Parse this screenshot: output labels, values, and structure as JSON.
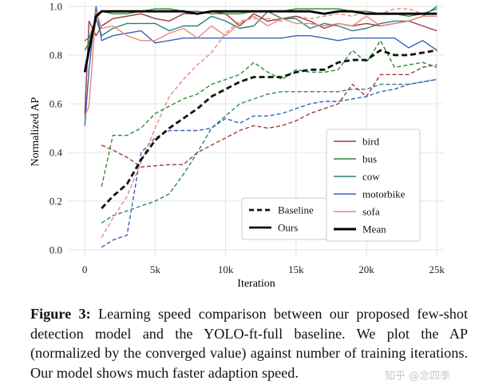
{
  "chart_data": {
    "type": "line",
    "xlabel": "Iteration",
    "ylabel": "Normalized AP",
    "xlim": [
      -1200,
      25500
    ],
    "ylim": [
      -0.03,
      1.02
    ],
    "xticks": [
      0,
      5000,
      10000,
      15000,
      20000,
      25000
    ],
    "xtick_labels": [
      "0",
      "5k",
      "10k",
      "15k",
      "20k",
      "25k"
    ],
    "yticks": [
      0.0,
      0.2,
      0.4,
      0.6,
      0.8,
      1.0
    ],
    "ytick_labels": [
      "0.0",
      "0.2",
      "0.4",
      "0.6",
      "0.8",
      "1.0"
    ],
    "grid": true,
    "legend_placement": "bottom-right",
    "series": [
      {
        "name": "bird",
        "color": "#9b3a3f",
        "style": "dashed",
        "width": 1.4,
        "x": [
          1200,
          2000,
          3000,
          4000,
          5000,
          6000,
          7000,
          8000,
          9000,
          10000,
          11000,
          12000,
          13000,
          14000,
          15000,
          16000,
          17000,
          18000,
          19000,
          20000,
          21000,
          22000,
          23000,
          24000,
          25000
        ],
        "y": [
          0.43,
          0.41,
          0.38,
          0.34,
          0.345,
          0.35,
          0.35,
          0.4,
          0.43,
          0.46,
          0.49,
          0.51,
          0.5,
          0.51,
          0.53,
          0.56,
          0.58,
          0.6,
          0.68,
          0.63,
          0.72,
          0.72,
          0.72,
          0.75,
          0.76
        ]
      },
      {
        "name": "bus",
        "color": "#2e8b2e",
        "style": "dashed",
        "width": 1.4,
        "x": [
          1200,
          2000,
          3000,
          4000,
          5000,
          6000,
          7000,
          8000,
          9000,
          10000,
          11000,
          12000,
          13000,
          14000,
          15000,
          16000,
          17000,
          18000,
          19000,
          20000,
          21000,
          22000,
          23000,
          24000,
          25000
        ],
        "y": [
          0.26,
          0.47,
          0.47,
          0.5,
          0.56,
          0.59,
          0.62,
          0.64,
          0.68,
          0.7,
          0.72,
          0.77,
          0.73,
          0.7,
          0.74,
          0.73,
          0.73,
          0.74,
          0.82,
          0.77,
          0.86,
          0.75,
          0.76,
          0.77,
          0.75
        ]
      },
      {
        "name": "cow",
        "color": "#2a7f7a",
        "style": "dashed",
        "width": 1.4,
        "x": [
          1200,
          2000,
          3000,
          4000,
          5000,
          6000,
          7000,
          8000,
          9000,
          10000,
          11000,
          12000,
          13000,
          14000,
          15000,
          16000,
          17000,
          18000,
          19000,
          20000,
          21000,
          22000,
          23000,
          24000,
          25000
        ],
        "y": [
          0.11,
          0.14,
          0.16,
          0.18,
          0.2,
          0.23,
          0.31,
          0.4,
          0.5,
          0.55,
          0.6,
          0.62,
          0.64,
          0.65,
          0.65,
          0.65,
          0.65,
          0.65,
          0.66,
          0.66,
          0.68,
          0.68,
          0.68,
          0.69,
          0.7
        ]
      },
      {
        "name": "motorbike",
        "color": "#3c5fbf",
        "style": "dashed",
        "width": 1.4,
        "x": [
          1200,
          2000,
          3000,
          4000,
          5000,
          6000,
          7000,
          8000,
          9000,
          10000,
          11000,
          12000,
          13000,
          14000,
          15000,
          16000,
          17000,
          18000,
          19000,
          20000,
          21000,
          22000,
          23000,
          24000,
          25000
        ],
        "y": [
          0.01,
          0.04,
          0.06,
          0.4,
          0.46,
          0.49,
          0.49,
          0.49,
          0.5,
          0.54,
          0.52,
          0.55,
          0.55,
          0.56,
          0.58,
          0.6,
          0.61,
          0.61,
          0.62,
          0.63,
          0.65,
          0.66,
          0.68,
          0.69,
          0.7
        ]
      },
      {
        "name": "sofa",
        "color": "#e8897a",
        "style": "dashed",
        "width": 1.4,
        "x": [
          1200,
          2000,
          3000,
          4000,
          5000,
          6000,
          7000,
          8000,
          9000,
          10000,
          11000,
          12000,
          13000,
          14000,
          15000,
          16000,
          17000,
          18000,
          19000,
          20000,
          21000,
          22000,
          23000,
          24000,
          25000
        ],
        "y": [
          0.05,
          0.13,
          0.22,
          0.36,
          0.5,
          0.63,
          0.7,
          0.76,
          0.81,
          0.89,
          0.94,
          0.95,
          0.95,
          0.94,
          0.96,
          0.95,
          0.96,
          0.97,
          0.96,
          0.98,
          0.97,
          0.99,
          0.99,
          0.97,
          0.99
        ]
      },
      {
        "name": "Baseline",
        "color": "#111111",
        "style": "dashed",
        "width": 2.8,
        "x": [
          1200,
          2000,
          3000,
          4000,
          5000,
          6000,
          7000,
          8000,
          9000,
          10000,
          11000,
          12000,
          13000,
          14000,
          15000,
          16000,
          17000,
          18000,
          19000,
          20000,
          21000,
          22000,
          23000,
          24000,
          25000
        ],
        "y": [
          0.17,
          0.22,
          0.27,
          0.37,
          0.45,
          0.5,
          0.54,
          0.58,
          0.63,
          0.66,
          0.69,
          0.71,
          0.71,
          0.71,
          0.73,
          0.74,
          0.74,
          0.77,
          0.78,
          0.78,
          0.82,
          0.8,
          0.8,
          0.81,
          0.82
        ]
      },
      {
        "name": "bird",
        "color": "#9b3a3f",
        "style": "solid",
        "width": 1.4,
        "x": [
          0,
          300,
          800,
          1200,
          2000,
          3000,
          4000,
          5000,
          6000,
          7000,
          8000,
          9000,
          10000,
          11000,
          12000,
          13000,
          14000,
          15000,
          16000,
          17000,
          18000,
          19000,
          20000,
          21000,
          22000,
          23000,
          24000,
          25000
        ],
        "y": [
          0.55,
          0.94,
          0.88,
          0.92,
          0.95,
          0.96,
          0.97,
          0.95,
          0.94,
          0.97,
          0.97,
          0.98,
          0.97,
          0.92,
          0.97,
          0.94,
          0.95,
          0.96,
          0.94,
          0.91,
          0.93,
          0.92,
          0.93,
          0.92,
          0.93,
          0.94,
          0.92,
          0.9
        ]
      },
      {
        "name": "bus",
        "color": "#2e8b2e",
        "style": "solid",
        "width": 1.4,
        "x": [
          0,
          300,
          800,
          1200,
          2000,
          3000,
          4000,
          5000,
          6000,
          7000,
          8000,
          9000,
          10000,
          11000,
          12000,
          13000,
          14000,
          15000,
          16000,
          17000,
          18000,
          19000,
          20000,
          21000,
          22000,
          23000,
          24000,
          25000
        ],
        "y": [
          0.82,
          0.85,
          0.95,
          0.98,
          0.97,
          0.97,
          0.98,
          0.99,
          0.99,
          0.98,
          0.98,
          0.97,
          0.97,
          0.97,
          0.98,
          0.98,
          0.98,
          0.99,
          0.99,
          0.99,
          0.99,
          0.98,
          0.98,
          0.97,
          0.97,
          0.96,
          0.97,
          0.99
        ]
      },
      {
        "name": "cow",
        "color": "#2a7f7a",
        "style": "solid",
        "width": 1.4,
        "x": [
          0,
          300,
          800,
          1200,
          2000,
          3000,
          4000,
          5000,
          6000,
          7000,
          8000,
          9000,
          10000,
          11000,
          12000,
          13000,
          14000,
          15000,
          16000,
          17000,
          18000,
          19000,
          20000,
          21000,
          22000,
          23000,
          24000,
          25000
        ],
        "y": [
          0.86,
          0.87,
          0.95,
          0.88,
          0.91,
          0.93,
          0.93,
          0.93,
          0.9,
          0.92,
          0.92,
          0.96,
          0.94,
          0.91,
          0.92,
          0.98,
          0.95,
          0.95,
          0.91,
          0.93,
          0.92,
          0.9,
          0.91,
          0.93,
          0.94,
          0.94,
          0.96,
          1.0
        ]
      },
      {
        "name": "motorbike",
        "color": "#3c5fbf",
        "style": "solid",
        "width": 1.4,
        "x": [
          0,
          300,
          800,
          1200,
          2000,
          3000,
          4000,
          5000,
          6000,
          7000,
          8000,
          9000,
          10000,
          11000,
          12000,
          13000,
          14000,
          15000,
          16000,
          17000,
          18000,
          19000,
          20000,
          21000,
          22000,
          23000,
          24000,
          25000
        ],
        "y": [
          0.51,
          0.74,
          1.0,
          0.86,
          0.88,
          0.89,
          0.9,
          0.85,
          0.86,
          0.87,
          0.87,
          0.87,
          0.87,
          0.87,
          0.87,
          0.87,
          0.87,
          0.88,
          0.88,
          0.87,
          0.86,
          0.87,
          0.87,
          0.87,
          0.87,
          0.83,
          0.86,
          0.82
        ]
      },
      {
        "name": "sofa",
        "color": "#e8897a",
        "style": "solid",
        "width": 1.4,
        "x": [
          0,
          300,
          800,
          1200,
          2000,
          3000,
          4000,
          5000,
          6000,
          7000,
          8000,
          9000,
          10000,
          11000,
          12000,
          13000,
          14000,
          15000,
          16000,
          17000,
          18000,
          19000,
          20000,
          21000,
          22000,
          23000,
          24000,
          25000
        ],
        "y": [
          0.55,
          0.59,
          0.98,
          0.91,
          0.92,
          0.88,
          0.86,
          0.86,
          0.89,
          0.91,
          0.87,
          0.92,
          0.88,
          0.93,
          0.96,
          0.92,
          0.95,
          0.93,
          0.93,
          0.92,
          0.93,
          0.92,
          0.96,
          0.92,
          0.93,
          0.94,
          0.96,
          0.96
        ]
      },
      {
        "name": "Mean",
        "color": "#000000",
        "style": "solid",
        "width": 2.8,
        "x": [
          0,
          300,
          800,
          1200,
          2000,
          3000,
          4000,
          5000,
          6000,
          7000,
          8000,
          9000,
          10000,
          11000,
          12000,
          13000,
          14000,
          15000,
          16000,
          17000,
          18000,
          19000,
          20000,
          21000,
          22000,
          23000,
          24000,
          25000
        ],
        "y": [
          0.73,
          0.82,
          0.96,
          0.98,
          0.98,
          0.98,
          0.98,
          0.98,
          0.98,
          0.98,
          0.97,
          0.98,
          0.98,
          0.98,
          0.98,
          0.98,
          0.98,
          0.98,
          0.98,
          0.97,
          0.98,
          0.98,
          0.97,
          0.97,
          0.97,
          0.97,
          0.97,
          0.97
        ]
      }
    ],
    "legend_left": [
      {
        "label": "Baseline",
        "color": "#111111",
        "style": "dashed",
        "width": 2.8
      },
      {
        "label": "Ours",
        "color": "#111111",
        "style": "solid",
        "width": 2.8
      }
    ],
    "legend_right": [
      {
        "label": "bird",
        "color": "#9b3a3f",
        "style": "solid",
        "width": 1.6
      },
      {
        "label": "bus",
        "color": "#2e8b2e",
        "style": "solid",
        "width": 1.6
      },
      {
        "label": "cow",
        "color": "#2a7f7a",
        "style": "solid",
        "width": 1.6
      },
      {
        "label": "motorbike",
        "color": "#3c5fbf",
        "style": "solid",
        "width": 1.6
      },
      {
        "label": "sofa",
        "color": "#e8897a",
        "style": "solid",
        "width": 1.6
      },
      {
        "label": "Mean",
        "color": "#000000",
        "style": "solid",
        "width": 3.0
      }
    ]
  },
  "caption": {
    "label": "Figure 3:",
    "text": " Learning speed comparison between our proposed few-shot detection model and the YOLO-ft-full baseline. We plot the AP (normalized by the converged value) against number of training iterations. Our model shows much faster adaption speed."
  },
  "watermark": "知乎 @念四季"
}
